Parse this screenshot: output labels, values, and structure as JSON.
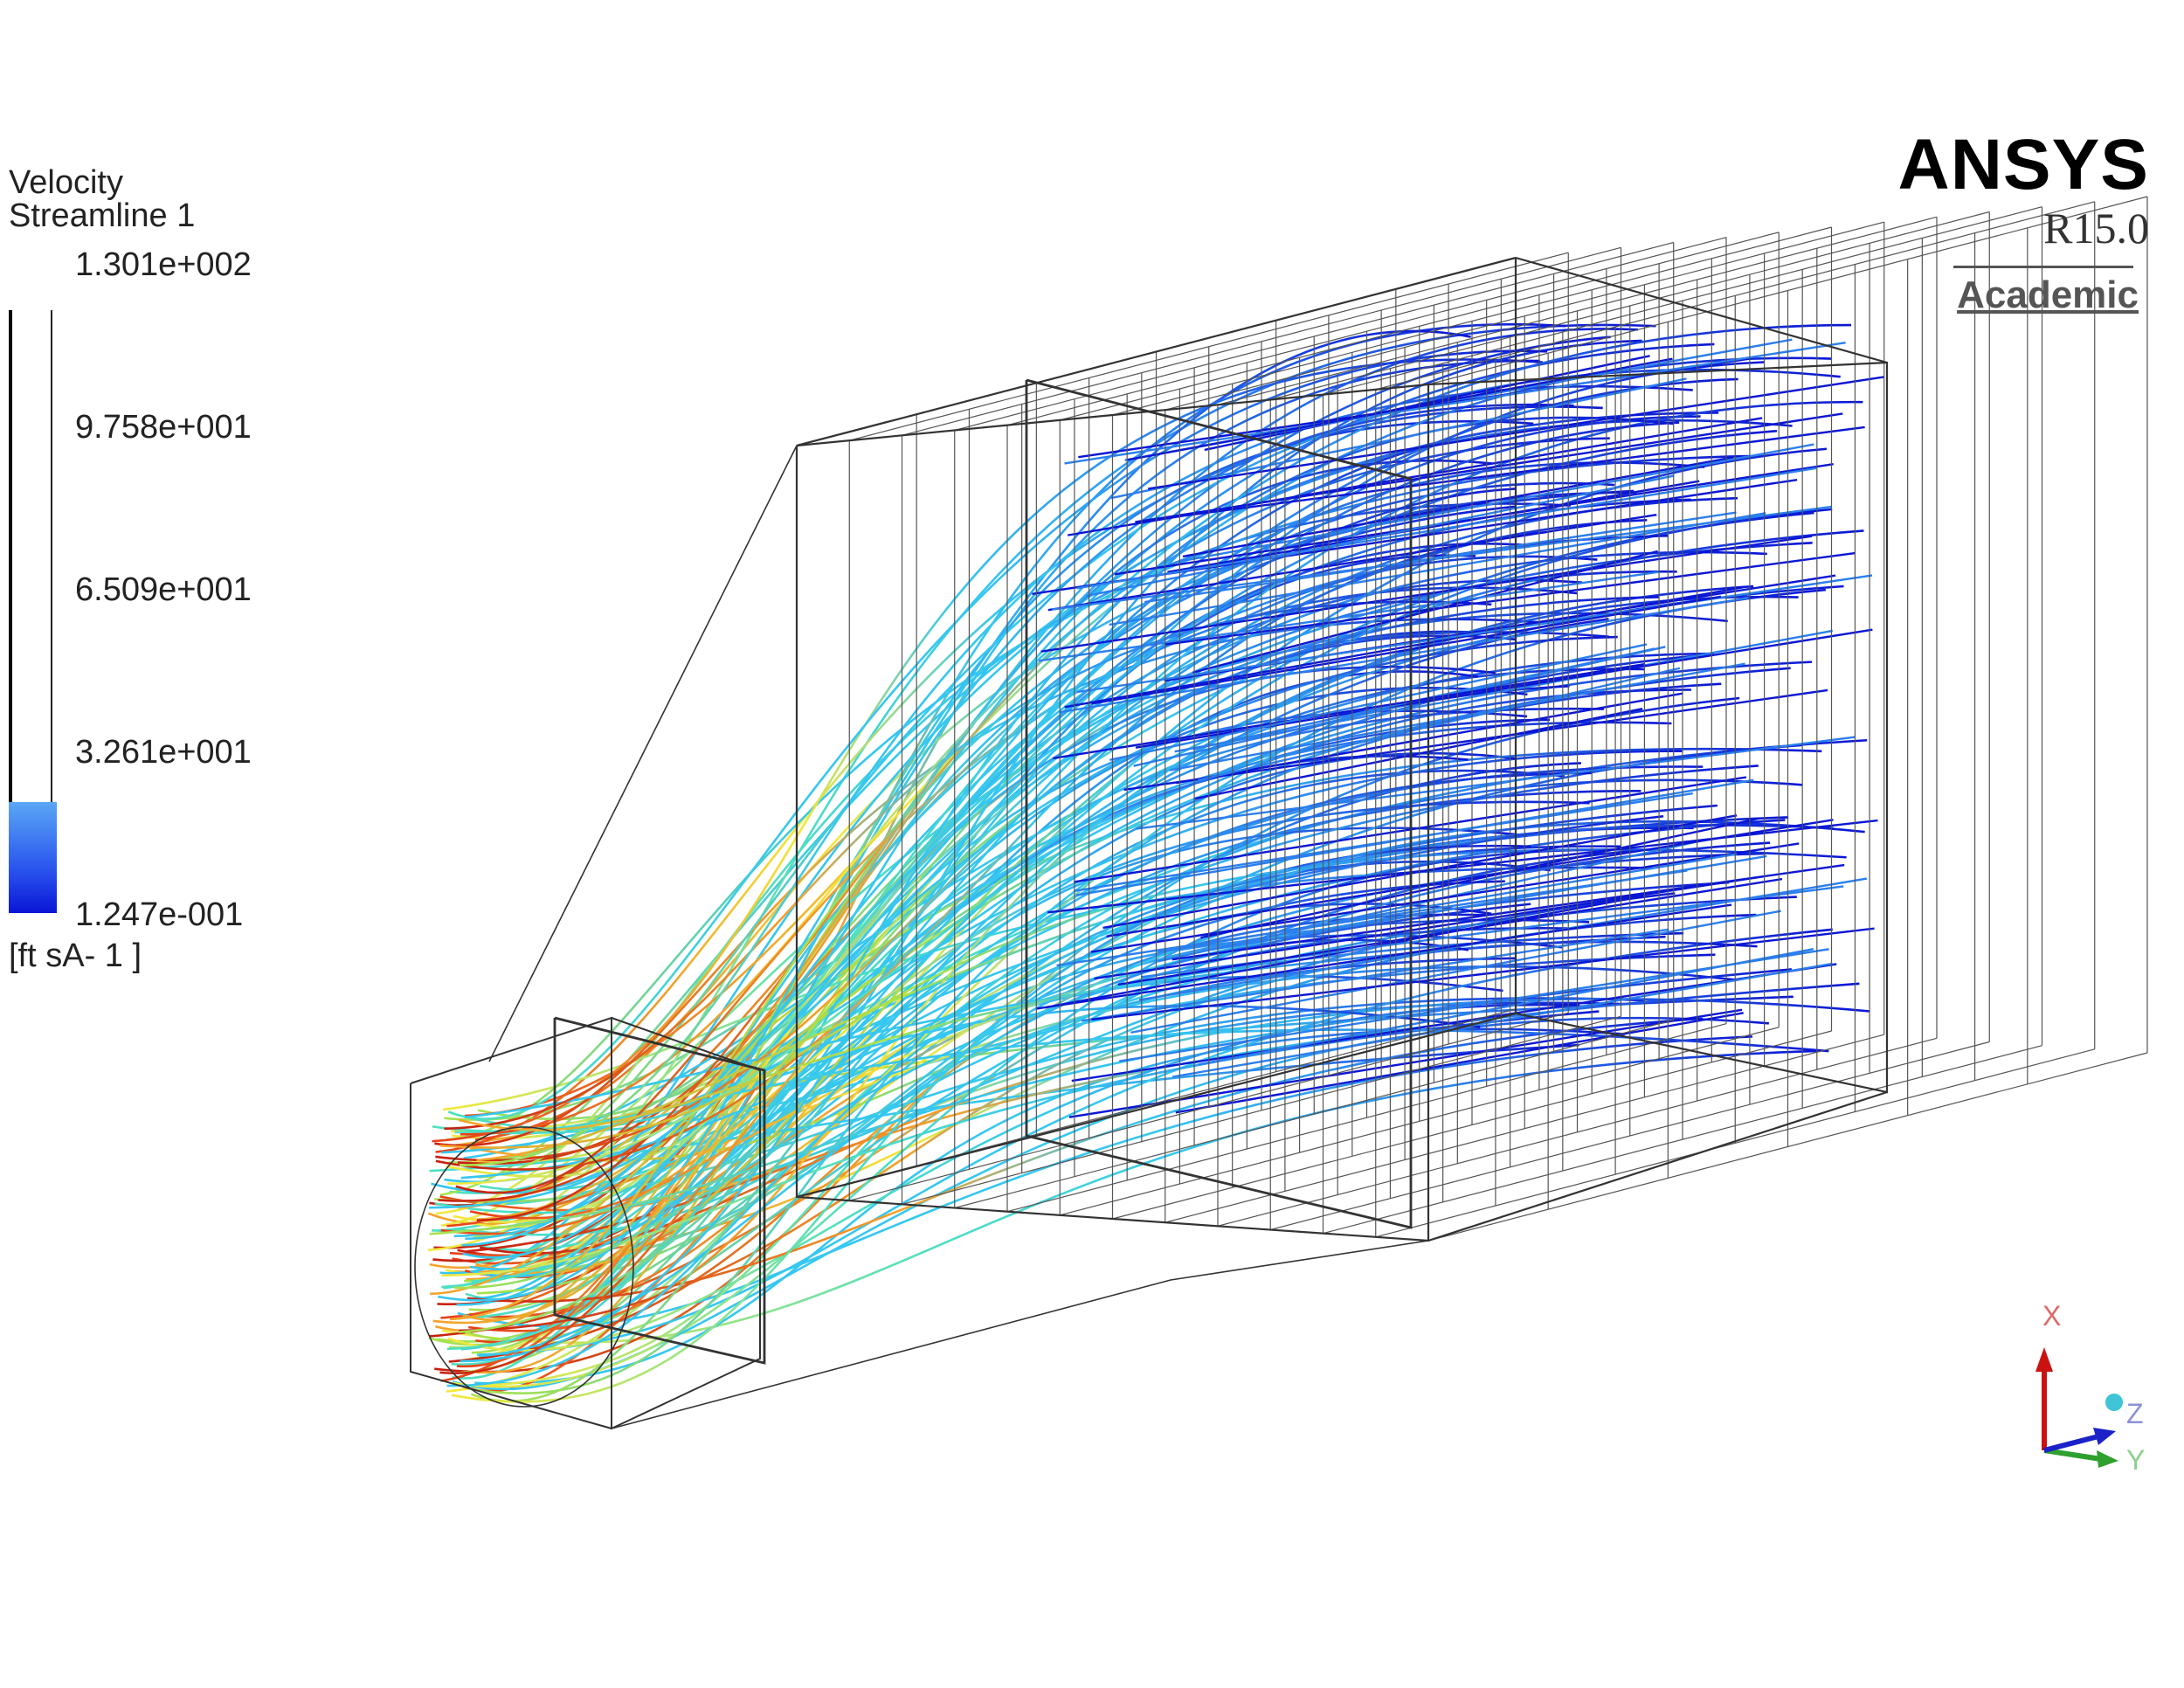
{
  "legend": {
    "title_line1": "Velocity",
    "title_line2": "Streamline 1",
    "values": [
      "1.301e+002",
      "9.758e+001",
      "6.509e+001",
      "3.261e+001",
      "1.247e-001"
    ],
    "units": "[ft sA- 1 ]"
  },
  "brand": {
    "name": "ANSYS",
    "version": "R15.0",
    "license": "Academic"
  },
  "triad": {
    "x_label": "X",
    "y_label": "Y",
    "z_label": "Z",
    "x_color": "#cc1111",
    "y_color": "#2ea02e",
    "z_color": "#1a22c8"
  },
  "colormap": [
    "#0a16d6",
    "#2a7ff0",
    "#36c7f0",
    "#4fe0c0",
    "#a8e24a",
    "#f4e83a",
    "#f6a22a",
    "#e8401a",
    "#c81e10"
  ]
}
